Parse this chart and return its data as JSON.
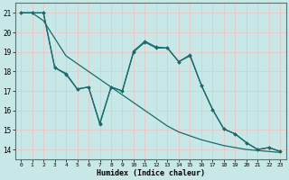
{
  "xlabel": "Humidex (Indice chaleur)",
  "xlim": [
    -0.5,
    23.5
  ],
  "ylim": [
    13.5,
    21.5
  ],
  "yticks": [
    14,
    15,
    16,
    17,
    18,
    19,
    20,
    21
  ],
  "xticks": [
    0,
    1,
    2,
    3,
    4,
    5,
    6,
    7,
    8,
    9,
    10,
    11,
    12,
    13,
    14,
    15,
    16,
    17,
    18,
    19,
    20,
    21,
    22,
    23
  ],
  "background_color": "#c8e8e8",
  "grid_color": "#e8c8c8",
  "line_color": "#1a6b6b",
  "series1": [
    21,
    21,
    21,
    18.2,
    17.85,
    17.1,
    17.2,
    15.35,
    17.2,
    17.0,
    19.0,
    19.5,
    19.2,
    19.2,
    18.5,
    18.8,
    17.3,
    16.05,
    15.05,
    14.8,
    14.35,
    14.0,
    14.1,
    13.9
  ],
  "series2": [
    21,
    21.0,
    21,
    18.2,
    17.9,
    17.1,
    17.2,
    15.3,
    17.2,
    17.0,
    19.05,
    19.55,
    19.25,
    19.2,
    18.5,
    18.85,
    17.3,
    16.05,
    15.05,
    14.8,
    14.35,
    14.0,
    14.1,
    13.9
  ],
  "series3": [
    21,
    21.0,
    20.6,
    19.7,
    18.8,
    18.4,
    18.0,
    17.6,
    17.2,
    16.8,
    16.4,
    16.0,
    15.6,
    15.2,
    14.9,
    14.7,
    14.5,
    14.35,
    14.2,
    14.1,
    14.0,
    13.95,
    13.9,
    13.85
  ]
}
